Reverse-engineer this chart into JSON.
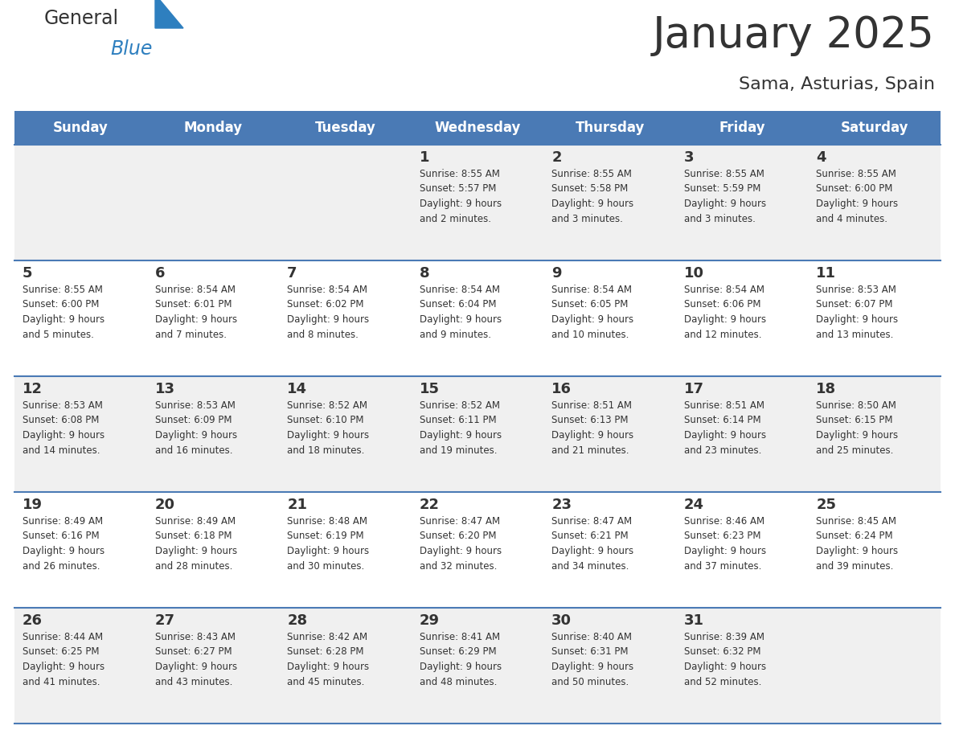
{
  "title": "January 2025",
  "subtitle": "Sama, Asturias, Spain",
  "header_color": "#4a7ab5",
  "header_text_color": "#ffffff",
  "day_names": [
    "Sunday",
    "Monday",
    "Tuesday",
    "Wednesday",
    "Thursday",
    "Friday",
    "Saturday"
  ],
  "bg_color": "#ffffff",
  "cell_bg_even": "#f0f0f0",
  "cell_bg_odd": "#ffffff",
  "row_line_color": "#4a7ab5",
  "text_color": "#333333",
  "logo_general_color": "#333333",
  "logo_blue_color": "#2e7fbf",
  "calendar": [
    [
      {
        "day": null,
        "info": null
      },
      {
        "day": null,
        "info": null
      },
      {
        "day": null,
        "info": null
      },
      {
        "day": 1,
        "info": "Sunrise: 8:55 AM\nSunset: 5:57 PM\nDaylight: 9 hours\nand 2 minutes."
      },
      {
        "day": 2,
        "info": "Sunrise: 8:55 AM\nSunset: 5:58 PM\nDaylight: 9 hours\nand 3 minutes."
      },
      {
        "day": 3,
        "info": "Sunrise: 8:55 AM\nSunset: 5:59 PM\nDaylight: 9 hours\nand 3 minutes."
      },
      {
        "day": 4,
        "info": "Sunrise: 8:55 AM\nSunset: 6:00 PM\nDaylight: 9 hours\nand 4 minutes."
      }
    ],
    [
      {
        "day": 5,
        "info": "Sunrise: 8:55 AM\nSunset: 6:00 PM\nDaylight: 9 hours\nand 5 minutes."
      },
      {
        "day": 6,
        "info": "Sunrise: 8:54 AM\nSunset: 6:01 PM\nDaylight: 9 hours\nand 7 minutes."
      },
      {
        "day": 7,
        "info": "Sunrise: 8:54 AM\nSunset: 6:02 PM\nDaylight: 9 hours\nand 8 minutes."
      },
      {
        "day": 8,
        "info": "Sunrise: 8:54 AM\nSunset: 6:04 PM\nDaylight: 9 hours\nand 9 minutes."
      },
      {
        "day": 9,
        "info": "Sunrise: 8:54 AM\nSunset: 6:05 PM\nDaylight: 9 hours\nand 10 minutes."
      },
      {
        "day": 10,
        "info": "Sunrise: 8:54 AM\nSunset: 6:06 PM\nDaylight: 9 hours\nand 12 minutes."
      },
      {
        "day": 11,
        "info": "Sunrise: 8:53 AM\nSunset: 6:07 PM\nDaylight: 9 hours\nand 13 minutes."
      }
    ],
    [
      {
        "day": 12,
        "info": "Sunrise: 8:53 AM\nSunset: 6:08 PM\nDaylight: 9 hours\nand 14 minutes."
      },
      {
        "day": 13,
        "info": "Sunrise: 8:53 AM\nSunset: 6:09 PM\nDaylight: 9 hours\nand 16 minutes."
      },
      {
        "day": 14,
        "info": "Sunrise: 8:52 AM\nSunset: 6:10 PM\nDaylight: 9 hours\nand 18 minutes."
      },
      {
        "day": 15,
        "info": "Sunrise: 8:52 AM\nSunset: 6:11 PM\nDaylight: 9 hours\nand 19 minutes."
      },
      {
        "day": 16,
        "info": "Sunrise: 8:51 AM\nSunset: 6:13 PM\nDaylight: 9 hours\nand 21 minutes."
      },
      {
        "day": 17,
        "info": "Sunrise: 8:51 AM\nSunset: 6:14 PM\nDaylight: 9 hours\nand 23 minutes."
      },
      {
        "day": 18,
        "info": "Sunrise: 8:50 AM\nSunset: 6:15 PM\nDaylight: 9 hours\nand 25 minutes."
      }
    ],
    [
      {
        "day": 19,
        "info": "Sunrise: 8:49 AM\nSunset: 6:16 PM\nDaylight: 9 hours\nand 26 minutes."
      },
      {
        "day": 20,
        "info": "Sunrise: 8:49 AM\nSunset: 6:18 PM\nDaylight: 9 hours\nand 28 minutes."
      },
      {
        "day": 21,
        "info": "Sunrise: 8:48 AM\nSunset: 6:19 PM\nDaylight: 9 hours\nand 30 minutes."
      },
      {
        "day": 22,
        "info": "Sunrise: 8:47 AM\nSunset: 6:20 PM\nDaylight: 9 hours\nand 32 minutes."
      },
      {
        "day": 23,
        "info": "Sunrise: 8:47 AM\nSunset: 6:21 PM\nDaylight: 9 hours\nand 34 minutes."
      },
      {
        "day": 24,
        "info": "Sunrise: 8:46 AM\nSunset: 6:23 PM\nDaylight: 9 hours\nand 37 minutes."
      },
      {
        "day": 25,
        "info": "Sunrise: 8:45 AM\nSunset: 6:24 PM\nDaylight: 9 hours\nand 39 minutes."
      }
    ],
    [
      {
        "day": 26,
        "info": "Sunrise: 8:44 AM\nSunset: 6:25 PM\nDaylight: 9 hours\nand 41 minutes."
      },
      {
        "day": 27,
        "info": "Sunrise: 8:43 AM\nSunset: 6:27 PM\nDaylight: 9 hours\nand 43 minutes."
      },
      {
        "day": 28,
        "info": "Sunrise: 8:42 AM\nSunset: 6:28 PM\nDaylight: 9 hours\nand 45 minutes."
      },
      {
        "day": 29,
        "info": "Sunrise: 8:41 AM\nSunset: 6:29 PM\nDaylight: 9 hours\nand 48 minutes."
      },
      {
        "day": 30,
        "info": "Sunrise: 8:40 AM\nSunset: 6:31 PM\nDaylight: 9 hours\nand 50 minutes."
      },
      {
        "day": 31,
        "info": "Sunrise: 8:39 AM\nSunset: 6:32 PM\nDaylight: 9 hours\nand 52 minutes."
      },
      {
        "day": null,
        "info": null
      }
    ]
  ],
  "fig_width": 11.88,
  "fig_height": 9.18,
  "dpi": 100
}
